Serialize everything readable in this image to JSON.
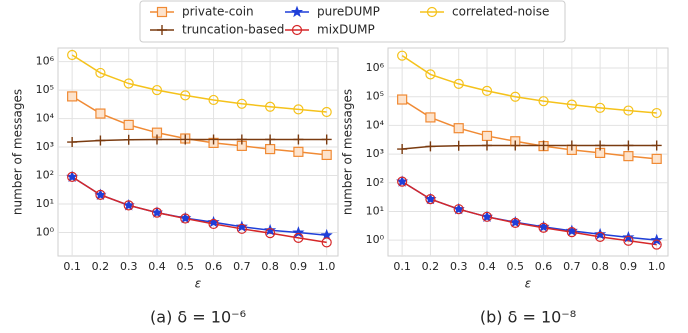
{
  "chart_data": [
    {
      "type": "line",
      "caption": "(a) δ = 10⁻⁶",
      "xlabel": "ε",
      "ylabel": "number of messages",
      "x": [
        0.1,
        0.2,
        0.3,
        0.4,
        0.5,
        0.6,
        0.7,
        0.8,
        0.9,
        1.0
      ],
      "xlim": [
        0.05,
        1.04
      ],
      "xticks": [
        0.1,
        0.2,
        0.3,
        0.4,
        0.5,
        0.6,
        0.7,
        0.8,
        0.9,
        {
          "value": 1,
          "label": "1.0"
        }
      ],
      "ylim": [
        0.15,
        3000000
      ],
      "log_scale": true,
      "grid": true,
      "yticks": [
        {
          "value": 1,
          "label": "10⁰"
        },
        {
          "value": 10,
          "label": "10¹"
        },
        {
          "value": 100,
          "label": "10²"
        },
        {
          "value": 1000,
          "label": "10³"
        },
        {
          "value": 10000,
          "label": "10⁴"
        },
        {
          "value": 100000,
          "label": "10⁵"
        },
        {
          "value": 1000000,
          "label": "10⁶"
        }
      ],
      "series": [
        {
          "name": "private-coin",
          "color": "#f08a34",
          "marker": "square",
          "values": [
            60000,
            15000,
            6000,
            3200,
            2000,
            1400,
            1100,
            850,
            680,
            530
          ]
        },
        {
          "name": "truncation-based",
          "color": "#7a3b10",
          "marker": "plus",
          "values": [
            1500,
            1700,
            1800,
            1850,
            1850,
            1850,
            1850,
            1850,
            1850,
            1850
          ]
        },
        {
          "name": "pureDUMP",
          "color": "#1f3fd8",
          "marker": "star",
          "values": [
            90,
            21,
            9,
            5,
            3.2,
            2.3,
            1.6,
            1.2,
            1.0,
            0.8
          ]
        },
        {
          "name": "mixDUMP",
          "color": "#d62728",
          "marker": "circle",
          "values": [
            90,
            21,
            9,
            5,
            3.1,
            2.0,
            1.35,
            0.95,
            0.65,
            0.45
          ]
        },
        {
          "name": "correlated-noise",
          "color": "#f5c21b",
          "marker": "circle",
          "values": [
            1700000,
            400000,
            170000,
            100000,
            65000,
            45000,
            33000,
            26000,
            21000,
            17000
          ]
        }
      ]
    },
    {
      "type": "line",
      "caption": "(b) δ = 10⁻⁸",
      "xlabel": "ε",
      "ylabel": "number of messages",
      "x": [
        0.1,
        0.2,
        0.3,
        0.4,
        0.5,
        0.6,
        0.7,
        0.8,
        0.9,
        1.0
      ],
      "xlim": [
        0.05,
        1.04
      ],
      "xticks": [
        0.1,
        0.2,
        0.3,
        0.4,
        0.5,
        0.6,
        0.7,
        0.8,
        0.9,
        {
          "value": 1,
          "label": "1.0"
        }
      ],
      "ylim": [
        0.28,
        5000000
      ],
      "log_scale": true,
      "grid": true,
      "yticks": [
        {
          "value": 1,
          "label": "10⁰"
        },
        {
          "value": 10,
          "label": "10¹"
        },
        {
          "value": 100,
          "label": "10²"
        },
        {
          "value": 1000,
          "label": "10³"
        },
        {
          "value": 10000,
          "label": "10⁴"
        },
        {
          "value": 100000,
          "label": "10⁵"
        },
        {
          "value": 1000000,
          "label": "10⁶"
        }
      ],
      "series": [
        {
          "name": "private-coin",
          "color": "#f08a34",
          "marker": "square",
          "values": [
            80000,
            19000,
            8000,
            4300,
            2800,
            1900,
            1400,
            1100,
            850,
            680
          ]
        },
        {
          "name": "truncation-based",
          "color": "#7a3b10",
          "marker": "plus",
          "values": [
            1500,
            1850,
            1950,
            2000,
            2000,
            2000,
            2000,
            2000,
            2000,
            2000
          ]
        },
        {
          "name": "pureDUMP",
          "color": "#1f3fd8",
          "marker": "star",
          "values": [
            110,
            27,
            12,
            6.5,
            4.2,
            2.9,
            2.1,
            1.6,
            1.25,
            1.0
          ]
        },
        {
          "name": "mixDUMP",
          "color": "#d62728",
          "marker": "circle",
          "values": [
            110,
            27,
            12,
            6.5,
            4,
            2.7,
            1.9,
            1.3,
            0.95,
            0.7
          ]
        },
        {
          "name": "correlated-noise",
          "color": "#f5c21b",
          "marker": "circle",
          "values": [
            2700000,
            600000,
            280000,
            160000,
            100000,
            70000,
            53000,
            41000,
            33000,
            27000
          ]
        }
      ]
    }
  ]
}
